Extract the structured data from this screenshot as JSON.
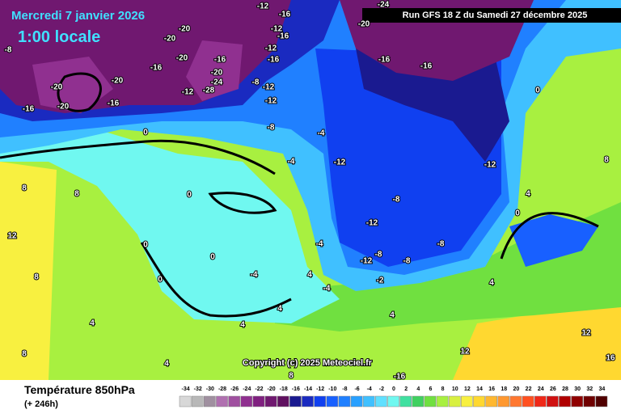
{
  "header": {
    "date": "Mercredi 7 janvier 2026",
    "time": "1:00 locale",
    "run": "Run GFS 18 Z du Samedi 27 décembre 2025"
  },
  "copyright": "Copyright (c) 2025 Meteociel.fr",
  "footer": {
    "title": "Température 850hPa",
    "lead": "(+ 246h)"
  },
  "legend": {
    "values": [
      -34,
      -32,
      -30,
      -28,
      -26,
      -24,
      -22,
      -20,
      -18,
      -16,
      -14,
      -12,
      -10,
      -8,
      -6,
      -4,
      -2,
      0,
      2,
      4,
      6,
      8,
      10,
      12,
      14,
      16,
      18,
      20,
      22,
      24,
      26,
      28,
      30,
      32,
      34
    ],
    "colors": [
      "#d8d8d8",
      "#b8b8b8",
      "#a090a0",
      "#b070b0",
      "#a050a0",
      "#903090",
      "#802080",
      "#701870",
      "#601060",
      "#1a1a90",
      "#1a2ac0",
      "#1040f0",
      "#1860ff",
      "#2080ff",
      "#28a0ff",
      "#40c0ff",
      "#60e0ff",
      "#70f8f0",
      "#40e0a0",
      "#40d060",
      "#70e040",
      "#a8f040",
      "#d8f040",
      "#f8f040",
      "#ffd830",
      "#ffb830",
      "#ff9830",
      "#ff7830",
      "#ff5020",
      "#f02818",
      "#d01010",
      "#b00000",
      "#900000",
      "#700000",
      "#500000"
    ]
  },
  "map_labels": [
    -20,
    -12,
    -16,
    -12,
    -16,
    -8,
    -20,
    -16,
    -12,
    -16,
    -20,
    -24,
    -20,
    -16,
    -16,
    -20,
    -20,
    -16,
    -20,
    -24,
    -28,
    -12,
    -8,
    -12,
    -16,
    -20,
    -16,
    -12,
    -8,
    -4,
    -4,
    -12,
    -12,
    0,
    0,
    -8,
    -12,
    -8,
    -12,
    -8,
    -8,
    -4,
    -4,
    0,
    0,
    0,
    4,
    4,
    4,
    8,
    8,
    12,
    8,
    8,
    4,
    8,
    12,
    12,
    16,
    0,
    8,
    4,
    0,
    4,
    -16,
    4,
    -2,
    4,
    -4
  ]
}
